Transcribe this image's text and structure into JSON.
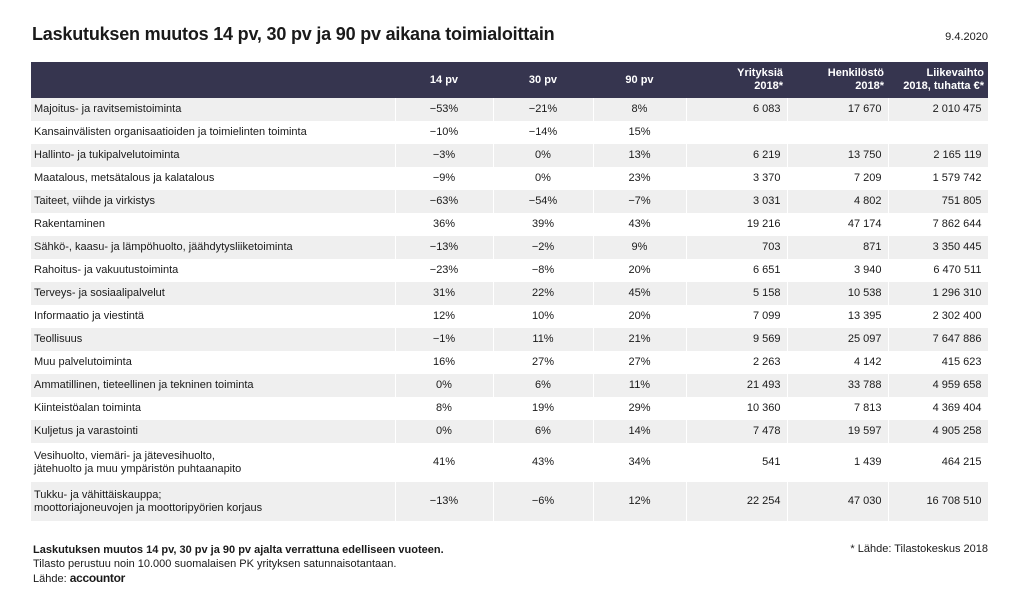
{
  "title": "Laskutuksen muutos 14 pv, 30 pv ja 90 pv aikana toimialoittain",
  "date": "9.4.2020",
  "chart_data": {
    "type": "table",
    "columns": [
      "",
      "14 pv",
      "30 pv",
      "90 pv",
      "Yrityksiä\n2018*",
      "Henkilöstö\n2018*",
      "Liikevaihto\n2018, tuhatta €*"
    ],
    "rows": [
      {
        "name": "Majoitus- ja ravitsemistoiminta",
        "d14": "-53%",
        "d30": "-21%",
        "d90": "8%",
        "companies": "6 083",
        "staff": "17 670",
        "revenue": "2 010 475"
      },
      {
        "name": "Kansainvälisten organisaatioiden ja toimielinten toiminta",
        "d14": "-10%",
        "d30": "-14%",
        "d90": "15%",
        "companies": "",
        "staff": "",
        "revenue": ""
      },
      {
        "name": "Hallinto- ja tukipalvelutoiminta",
        "d14": "-3%",
        "d30": "0%",
        "d90": "13%",
        "companies": "6 219",
        "staff": "13 750",
        "revenue": "2 165 119"
      },
      {
        "name": "Maatalous, metsätalous ja kalatalous",
        "d14": "-9%",
        "d30": "0%",
        "d90": "23%",
        "companies": "3 370",
        "staff": "7 209",
        "revenue": "1 579 742"
      },
      {
        "name": "Taiteet, viihde ja virkistys",
        "d14": "-63%",
        "d30": "-54%",
        "d90": "-7%",
        "companies": "3 031",
        "staff": "4 802",
        "revenue": "751 805"
      },
      {
        "name": "Rakentaminen",
        "d14": "36%",
        "d30": "39%",
        "d90": "43%",
        "companies": "19 216",
        "staff": "47 174",
        "revenue": "7 862 644"
      },
      {
        "name": "Sähkö-, kaasu- ja lämpöhuolto, jäähdytysliiketoiminta",
        "d14": "-13%",
        "d30": "-2%",
        "d90": "9%",
        "companies": "703",
        "staff": "871",
        "revenue": "3 350 445"
      },
      {
        "name": "Rahoitus- ja vakuutustoiminta",
        "d14": "-23%",
        "d30": "-8%",
        "d90": "20%",
        "companies": "6 651",
        "staff": "3 940",
        "revenue": "6 470 511"
      },
      {
        "name": "Terveys- ja sosiaalipalvelut",
        "d14": "31%",
        "d30": "22%",
        "d90": "45%",
        "companies": "5 158",
        "staff": "10 538",
        "revenue": "1 296 310"
      },
      {
        "name": "Informaatio ja viestintä",
        "d14": "12%",
        "d30": "10%",
        "d90": "20%",
        "companies": "7 099",
        "staff": "13 395",
        "revenue": "2 302 400"
      },
      {
        "name": "Teollisuus",
        "d14": "-1%",
        "d30": "11%",
        "d90": "21%",
        "companies": "9 569",
        "staff": "25 097",
        "revenue": "7 647 886"
      },
      {
        "name": "Muu palvelutoiminta",
        "d14": "16%",
        "d30": "27%",
        "d90": "27%",
        "companies": "2 263",
        "staff": "4 142",
        "revenue": "415 623"
      },
      {
        "name": "Ammatillinen, tieteellinen ja tekninen toiminta",
        "d14": "0%",
        "d30": "6%",
        "d90": "11%",
        "companies": "21 493",
        "staff": "33 788",
        "revenue": "4 959 658"
      },
      {
        "name": "Kiinteistöalan toiminta",
        "d14": "8%",
        "d30": "19%",
        "d90": "29%",
        "companies": "10 360",
        "staff": "7 813",
        "revenue": "4 369 404"
      },
      {
        "name": "Kuljetus ja varastointi",
        "d14": "0%",
        "d30": "6%",
        "d90": "14%",
        "companies": "7 478",
        "staff": "19 597",
        "revenue": "4 905 258"
      },
      {
        "name": "Vesihuolto, viemäri- ja jätevesihuolto,\njätehuolto ja muu ympäristön puhtaanapito",
        "d14": "41%",
        "d30": "43%",
        "d90": "34%",
        "companies": "541",
        "staff": "1 439",
        "revenue": "464 215"
      },
      {
        "name": "Tukku- ja vähittäiskauppa;\nmoottoriajoneuvojen ja moottoripyörien korjaus",
        "d14": "-13%",
        "d30": "-6%",
        "d90": "12%",
        "companies": "22 254",
        "staff": "47 030",
        "revenue": "16 708 510"
      }
    ]
  },
  "footer": {
    "note_bold": "Laskutuksen muutos 14 pv, 30 pv ja 90 pv ajalta verrattuna edelliseen vuoteen.",
    "note": "Tilasto perustuu noin 10.000 suomalaisen PK yrityksen satunnaisotantaan.",
    "source_label": "Lähde:",
    "logo": "accountor",
    "stats_source": "* Lähde: Tilastokeskus 2018"
  },
  "colors": {
    "header_bg": "#36354f",
    "stripe": "#efefef"
  }
}
